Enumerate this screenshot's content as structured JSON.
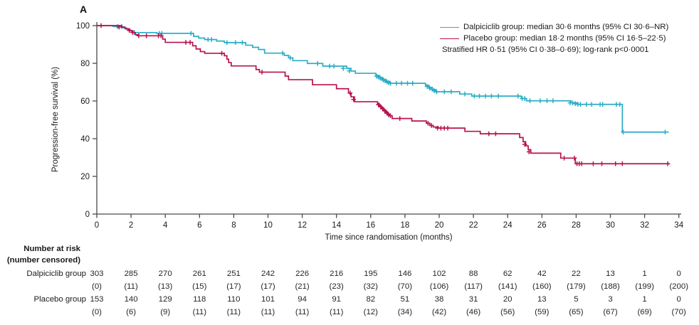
{
  "panel_label": "A",
  "colors": {
    "dalpiciclib": "#2BADC7",
    "placebo": "#B81250",
    "axis": "#4a4a4a",
    "text": "#1a1a1a"
  },
  "legend": {
    "dalpiciclib_label": "Dalpiciclib group: median 30·6 months (95% CI 30·6–NR)",
    "placebo_label": "Placebo group: median 18·2 months (95% CI 16·5–22·5)",
    "annotation": "Stratified HR 0·51 (95% CI 0·38–0·69); log-rank p<0·0001"
  },
  "chart_data": {
    "type": "line",
    "subtype": "kaplan-meier-step",
    "title": "",
    "xlabel": "Time since randomisation (months)",
    "ylabel": "Progression-free survival (%)",
    "xlim": [
      0,
      34
    ],
    "ylim": [
      0,
      100
    ],
    "xticks": [
      0,
      2,
      4,
      6,
      8,
      10,
      12,
      14,
      16,
      18,
      20,
      22,
      24,
      26,
      28,
      30,
      32,
      34
    ],
    "yticks": [
      0,
      20,
      40,
      60,
      80,
      100
    ],
    "grid": false,
    "legend_position": "top-right",
    "series": [
      {
        "name": "Dalpiciclib group",
        "color": "#2BADC7",
        "median_months": "30·6",
        "ci": "30·6–NR",
        "end": 33.4,
        "steps": [
          [
            0,
            100
          ],
          [
            0.95,
            99.5
          ],
          [
            1.5,
            98.8
          ],
          [
            1.75,
            98.0
          ],
          [
            1.95,
            97.2
          ],
          [
            2.15,
            96.3
          ],
          [
            3.5,
            95.9
          ],
          [
            5.65,
            94.3
          ],
          [
            5.95,
            93.4
          ],
          [
            6.3,
            92.6
          ],
          [
            7.0,
            91.8
          ],
          [
            7.45,
            91.0
          ],
          [
            8.7,
            89.6
          ],
          [
            9.1,
            88.5
          ],
          [
            9.45,
            87.3
          ],
          [
            9.8,
            85.4
          ],
          [
            10.95,
            84.2
          ],
          [
            11.2,
            82.9
          ],
          [
            11.45,
            81.4
          ],
          [
            12.3,
            79.9
          ],
          [
            13.2,
            78.5
          ],
          [
            14.6,
            77.3
          ],
          [
            14.85,
            75.9
          ],
          [
            15.1,
            74.7
          ],
          [
            16.3,
            73.5
          ],
          [
            16.5,
            72.4
          ],
          [
            16.7,
            71.3
          ],
          [
            16.9,
            70.3
          ],
          [
            17.1,
            69.4
          ],
          [
            19.2,
            68.3
          ],
          [
            19.4,
            67.2
          ],
          [
            19.6,
            66.0
          ],
          [
            19.8,
            64.9
          ],
          [
            21.2,
            63.7
          ],
          [
            21.9,
            62.6
          ],
          [
            24.8,
            61.3
          ],
          [
            25.1,
            60.1
          ],
          [
            27.7,
            59.0
          ],
          [
            28.1,
            58.2
          ],
          [
            30.7,
            43.5
          ]
        ],
        "censors": [
          [
            1.2,
            99.5
          ],
          [
            1.45,
            99.5
          ],
          [
            2.2,
            96.3
          ],
          [
            3.65,
            95.9
          ],
          [
            3.8,
            95.9
          ],
          [
            5.5,
            95.9
          ],
          [
            6.5,
            92.6
          ],
          [
            6.7,
            92.6
          ],
          [
            7.6,
            91.0
          ],
          [
            8.1,
            91.0
          ],
          [
            8.5,
            91.0
          ],
          [
            10.85,
            85.4
          ],
          [
            11.3,
            82.9
          ],
          [
            12.9,
            79.9
          ],
          [
            13.6,
            78.5
          ],
          [
            13.85,
            78.5
          ],
          [
            14.4,
            77.3
          ],
          [
            14.75,
            76.0
          ],
          [
            16.35,
            73.1
          ],
          [
            16.45,
            72.7
          ],
          [
            16.55,
            72.2
          ],
          [
            16.65,
            71.7
          ],
          [
            16.75,
            71.1
          ],
          [
            16.85,
            70.7
          ],
          [
            16.95,
            70.1
          ],
          [
            17.05,
            69.7
          ],
          [
            17.15,
            69.4
          ],
          [
            17.5,
            69.4
          ],
          [
            17.8,
            69.4
          ],
          [
            18.15,
            69.4
          ],
          [
            18.45,
            69.4
          ],
          [
            19.3,
            67.7
          ],
          [
            19.45,
            66.8
          ],
          [
            19.6,
            66.2
          ],
          [
            19.7,
            65.5
          ],
          [
            19.85,
            64.9
          ],
          [
            20.3,
            64.9
          ],
          [
            20.7,
            64.9
          ],
          [
            21.5,
            63.7
          ],
          [
            22.05,
            62.6
          ],
          [
            22.35,
            62.6
          ],
          [
            22.7,
            62.6
          ],
          [
            23.05,
            62.6
          ],
          [
            23.45,
            62.6
          ],
          [
            24.6,
            62.6
          ],
          [
            24.85,
            61.3
          ],
          [
            25.0,
            61.3
          ],
          [
            25.3,
            60.1
          ],
          [
            25.9,
            60.1
          ],
          [
            26.3,
            60.1
          ],
          [
            26.65,
            60.1
          ],
          [
            27.65,
            59.0
          ],
          [
            27.8,
            59.0
          ],
          [
            27.95,
            58.6
          ],
          [
            28.1,
            58.3
          ],
          [
            28.25,
            58.2
          ],
          [
            28.6,
            58.2
          ],
          [
            28.9,
            58.2
          ],
          [
            29.4,
            58.2
          ],
          [
            29.55,
            58.2
          ],
          [
            30.35,
            58.2
          ],
          [
            30.55,
            58.2
          ],
          [
            30.75,
            43.5
          ],
          [
            33.2,
            43.5
          ]
        ]
      },
      {
        "name": "Placebo group",
        "color": "#B81250",
        "median_months": "18·2",
        "ci": "16·5–22·5",
        "end": 33.45,
        "steps": [
          [
            0,
            100
          ],
          [
            1.45,
            99.2
          ],
          [
            1.65,
            98.3
          ],
          [
            1.85,
            97.4
          ],
          [
            2.05,
            96.3
          ],
          [
            2.25,
            95.2
          ],
          [
            2.45,
            94.6
          ],
          [
            3.85,
            92.8
          ],
          [
            4.0,
            91.1
          ],
          [
            5.6,
            89.3
          ],
          [
            5.8,
            87.6
          ],
          [
            6.05,
            86.2
          ],
          [
            6.3,
            85.3
          ],
          [
            7.45,
            84.0
          ],
          [
            7.6,
            82.2
          ],
          [
            7.7,
            80.4
          ],
          [
            7.85,
            78.6
          ],
          [
            9.3,
            76.7
          ],
          [
            9.5,
            75.3
          ],
          [
            11.0,
            73.2
          ],
          [
            11.2,
            71.3
          ],
          [
            12.6,
            68.6
          ],
          [
            14.0,
            66.5
          ],
          [
            14.7,
            64.2
          ],
          [
            14.85,
            62.2
          ],
          [
            15.05,
            59.6
          ],
          [
            16.4,
            58.6
          ],
          [
            16.5,
            57.5
          ],
          [
            16.62,
            56.4
          ],
          [
            16.75,
            55.2
          ],
          [
            16.88,
            54.1
          ],
          [
            17.0,
            52.9
          ],
          [
            17.1,
            52.2
          ],
          [
            17.25,
            50.7
          ],
          [
            18.4,
            49.4
          ],
          [
            19.25,
            48.2
          ],
          [
            19.45,
            47.0
          ],
          [
            19.65,
            46.2
          ],
          [
            19.95,
            45.6
          ],
          [
            21.5,
            43.9
          ],
          [
            22.4,
            42.6
          ],
          [
            24.7,
            40.6
          ],
          [
            24.9,
            38.4
          ],
          [
            25.05,
            36.2
          ],
          [
            25.2,
            34.2
          ],
          [
            25.35,
            32.3
          ],
          [
            27.1,
            29.7
          ],
          [
            27.95,
            26.7
          ]
        ],
        "censors": [
          [
            0.25,
            100
          ],
          [
            1.3,
            99.2
          ],
          [
            1.9,
            97.4
          ],
          [
            2.1,
            96.3
          ],
          [
            2.45,
            94.6
          ],
          [
            2.9,
            94.6
          ],
          [
            3.6,
            94.6
          ],
          [
            3.75,
            94.6
          ],
          [
            5.2,
            91.1
          ],
          [
            5.45,
            91.1
          ],
          [
            7.3,
            85.3
          ],
          [
            9.65,
            75.3
          ],
          [
            14.8,
            64.2
          ],
          [
            15.0,
            60.8
          ],
          [
            16.45,
            58.0
          ],
          [
            16.58,
            56.9
          ],
          [
            16.7,
            55.8
          ],
          [
            16.82,
            54.7
          ],
          [
            16.95,
            53.5
          ],
          [
            17.05,
            52.6
          ],
          [
            17.15,
            52.2
          ],
          [
            17.7,
            50.7
          ],
          [
            19.35,
            48.2
          ],
          [
            19.55,
            47.0
          ],
          [
            19.9,
            45.6
          ],
          [
            20.1,
            45.6
          ],
          [
            20.3,
            45.6
          ],
          [
            20.5,
            45.6
          ],
          [
            22.9,
            42.6
          ],
          [
            23.3,
            42.6
          ],
          [
            25.0,
            37.0
          ],
          [
            25.25,
            33.0
          ],
          [
            27.3,
            29.7
          ],
          [
            27.9,
            29.7
          ],
          [
            28.05,
            26.7
          ],
          [
            28.18,
            26.7
          ],
          [
            28.32,
            26.7
          ],
          [
            29.0,
            26.7
          ],
          [
            29.5,
            26.7
          ],
          [
            30.3,
            26.7
          ],
          [
            30.7,
            26.7
          ],
          [
            33.35,
            26.7
          ]
        ]
      }
    ]
  },
  "risk_table": {
    "header_line1": "Number at risk",
    "header_line2": "(number censored)",
    "months": [
      0,
      2,
      4,
      6,
      8,
      10,
      12,
      14,
      16,
      18,
      20,
      22,
      24,
      26,
      28,
      30,
      32,
      34
    ],
    "rows": [
      {
        "label": "Dalpiciclib group",
        "at_risk": [
          "303",
          "285",
          "270",
          "261",
          "251",
          "242",
          "226",
          "216",
          "195",
          "146",
          "102",
          "88",
          "62",
          "42",
          "22",
          "13",
          "1",
          "0"
        ],
        "censored": [
          "(0)",
          "(11)",
          "(13)",
          "(15)",
          "(17)",
          "(17)",
          "(21)",
          "(23)",
          "(32)",
          "(70)",
          "(106)",
          "(117)",
          "(141)",
          "(160)",
          "(179)",
          "(188)",
          "(199)",
          "(200)"
        ]
      },
      {
        "label": "Placebo group",
        "at_risk": [
          "153",
          "140",
          "129",
          "118",
          "110",
          "101",
          "94",
          "91",
          "82",
          "51",
          "38",
          "31",
          "20",
          "13",
          "5",
          "3",
          "1",
          "0"
        ],
        "censored": [
          "(0)",
          "(6)",
          "(9)",
          "(11)",
          "(11)",
          "(11)",
          "(11)",
          "(11)",
          "(12)",
          "(34)",
          "(42)",
          "(46)",
          "(56)",
          "(59)",
          "(65)",
          "(67)",
          "(69)",
          "(70)"
        ]
      }
    ]
  }
}
